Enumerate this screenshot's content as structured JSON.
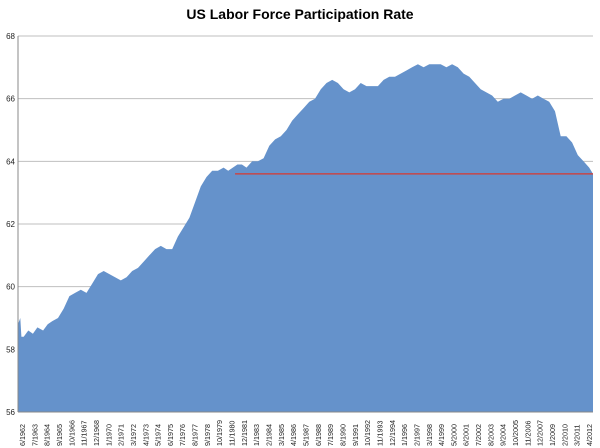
{
  "chart_data": {
    "type": "area",
    "title": "US Labor Force Participation Rate",
    "xlabel": "",
    "ylabel": "",
    "ylim": [
      56,
      68
    ],
    "yticks": [
      56,
      58,
      60,
      62,
      64,
      66,
      68
    ],
    "grid": "horizontal",
    "legend": "none",
    "colors": {
      "area": "#6592CB",
      "reference_line": "#D9382E",
      "grid": "#BFBFBF"
    },
    "xtick_labels": [
      "6/1962",
      "7/1963",
      "8/1964",
      "9/1965",
      "10/1966",
      "11/1967",
      "12/1968",
      "1/1970",
      "2/1971",
      "3/1972",
      "4/1973",
      "5/1974",
      "6/1975",
      "7/1976",
      "8/1977",
      "9/1978",
      "10/1979",
      "11/1980",
      "12/1981",
      "1/1983",
      "2/1984",
      "3/1985",
      "4/1986",
      "5/1987",
      "6/1988",
      "7/1989",
      "8/1990",
      "9/1991",
      "10/1992",
      "11/1993",
      "12/1994",
      "1/1996",
      "2/1997",
      "3/1998",
      "4/1999",
      "5/2000",
      "6/2001",
      "7/2002",
      "8/2003",
      "9/2004",
      "10/2005",
      "11/2006",
      "12/2007",
      "1/2009",
      "2/2010",
      "3/2011",
      "4/2012"
    ],
    "x": [
      1962.0,
      1962.2,
      1962.3,
      1962.5,
      1962.9,
      1963.3,
      1963.7,
      1964.2,
      1964.6,
      1965.0,
      1965.5,
      1966.0,
      1966.5,
      1967.0,
      1967.5,
      1968.0,
      1968.5,
      1969.0,
      1969.5,
      1970.0,
      1970.5,
      1971.0,
      1971.5,
      1972.0,
      1972.5,
      1973.0,
      1973.5,
      1974.0,
      1974.5,
      1975.0,
      1975.5,
      1976.0,
      1976.5,
      1977.0,
      1977.5,
      1978.0,
      1978.5,
      1979.0,
      1979.5,
      1980.0,
      1980.4,
      1980.8,
      1981.2,
      1981.6,
      1982.0,
      1982.5,
      1983.0,
      1983.5,
      1984.0,
      1984.5,
      1985.0,
      1985.5,
      1986.0,
      1986.5,
      1987.0,
      1987.5,
      1988.0,
      1988.5,
      1989.0,
      1989.5,
      1990.0,
      1990.5,
      1991.0,
      1991.5,
      1992.0,
      1992.5,
      1993.0,
      1993.5,
      1994.0,
      1994.5,
      1995.0,
      1995.5,
      1996.0,
      1996.5,
      1997.0,
      1997.5,
      1998.0,
      1998.5,
      1999.0,
      1999.5,
      2000.0,
      2000.5,
      2001.0,
      2001.5,
      2002.0,
      2002.5,
      2003.0,
      2003.5,
      2004.0,
      2004.5,
      2005.0,
      2005.5,
      2006.0,
      2006.5,
      2007.0,
      2007.5,
      2008.0,
      2008.5,
      2009.0,
      2009.5,
      2010.0,
      2010.5,
      2011.0,
      2011.5,
      2012.0,
      2012.33
    ],
    "values": [
      58.8,
      59.0,
      58.4,
      58.4,
      58.6,
      58.5,
      58.7,
      58.6,
      58.8,
      58.9,
      59.0,
      59.3,
      59.7,
      59.8,
      59.9,
      59.8,
      60.1,
      60.4,
      60.5,
      60.4,
      60.3,
      60.2,
      60.3,
      60.5,
      60.6,
      60.8,
      61.0,
      61.2,
      61.3,
      61.2,
      61.2,
      61.6,
      61.9,
      62.2,
      62.7,
      63.2,
      63.5,
      63.7,
      63.7,
      63.8,
      63.7,
      63.8,
      63.9,
      63.9,
      63.8,
      64.0,
      64.0,
      64.1,
      64.5,
      64.7,
      64.8,
      65.0,
      65.3,
      65.5,
      65.7,
      65.9,
      66.0,
      66.3,
      66.5,
      66.6,
      66.5,
      66.3,
      66.2,
      66.3,
      66.5,
      66.4,
      66.4,
      66.4,
      66.6,
      66.7,
      66.7,
      66.8,
      66.9,
      67.0,
      67.1,
      67.0,
      67.1,
      67.1,
      67.1,
      67.0,
      67.1,
      67.0,
      66.8,
      66.7,
      66.5,
      66.3,
      66.2,
      66.1,
      65.9,
      66.0,
      66.0,
      66.1,
      66.2,
      66.1,
      66.0,
      66.1,
      66.0,
      65.9,
      65.6,
      64.8,
      64.8,
      64.6,
      64.2,
      64.0,
      63.8,
      63.6
    ],
    "reference_line": {
      "value": 63.6,
      "x_start": 1981.0,
      "x_end": 2012.33
    }
  }
}
